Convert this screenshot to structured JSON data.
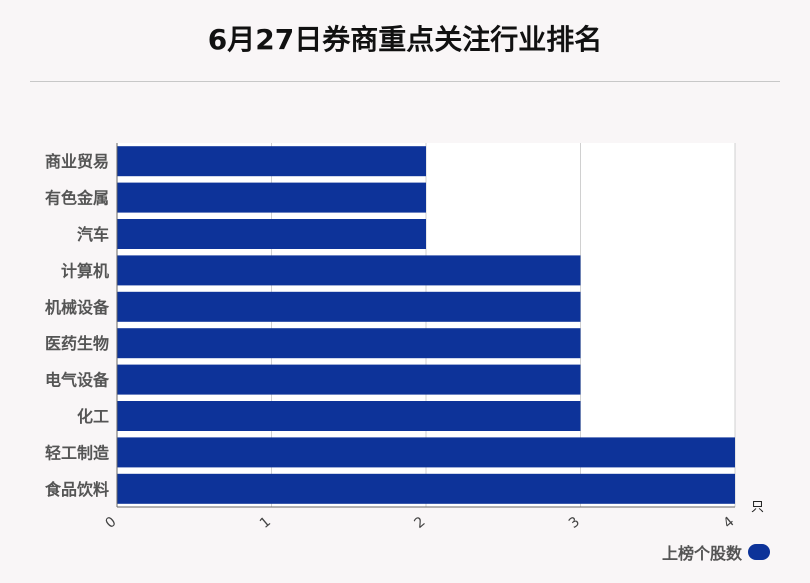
{
  "chart_data": {
    "type": "bar",
    "orientation": "horizontal",
    "title": "6月27日券商重点关注行业排名",
    "categories": [
      "商业贸易",
      "有色金属",
      "汽车",
      "计算机",
      "机械设备",
      "医药生物",
      "电气设备",
      "化工",
      "轻工制造",
      "食品饮料"
    ],
    "series": [
      {
        "name": "上榜个股数",
        "values": [
          2,
          2,
          2,
          3,
          3,
          3,
          3,
          3,
          4,
          4
        ]
      }
    ],
    "xlim": [
      0,
      4
    ],
    "x_ticks": [
      "0",
      "1",
      "2",
      "3",
      "4"
    ],
    "x_unit": "只",
    "grid": true,
    "legend_position": "bottom-right",
    "bar_color": "#0d3399"
  }
}
